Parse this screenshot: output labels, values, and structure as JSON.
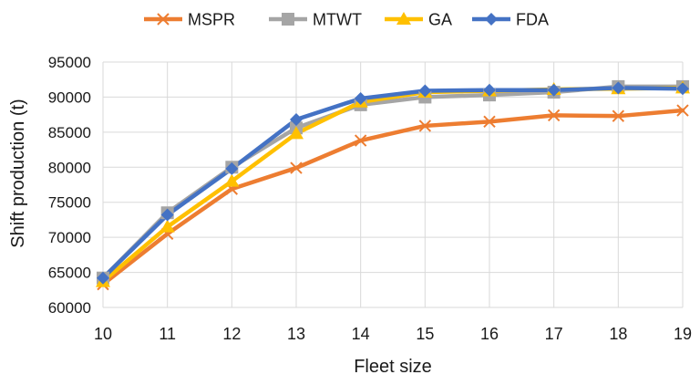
{
  "chart_data": {
    "type": "line",
    "title": "",
    "xlabel": "Fleet size",
    "ylabel": "Shift production (t)",
    "x": [
      10,
      11,
      12,
      13,
      14,
      15,
      16,
      17,
      18,
      19
    ],
    "x_tick_labels": [
      "10",
      "11",
      "12",
      "13",
      "14",
      "15",
      "16",
      "17",
      "18",
      "19"
    ],
    "ylim": [
      60000,
      95000
    ],
    "y_ticks": [
      60000,
      65000,
      70000,
      75000,
      80000,
      85000,
      90000,
      95000
    ],
    "y_tick_labels": [
      "60000",
      "65000",
      "70000",
      "75000",
      "80000",
      "85000",
      "90000",
      "95000"
    ],
    "grid": "horizontal",
    "legend_position": "top",
    "series": [
      {
        "name": "MSPR",
        "color": "#ED7D31",
        "marker": "x",
        "values": [
          63300,
          70500,
          76900,
          79900,
          83800,
          85900,
          86500,
          87400,
          87300,
          88100
        ]
      },
      {
        "name": "MTWT",
        "color": "#A5A5A5",
        "marker": "square",
        "values": [
          64200,
          73500,
          80000,
          85600,
          88900,
          90000,
          90300,
          90700,
          91500,
          91500
        ]
      },
      {
        "name": "GA",
        "color": "#FFC000",
        "marker": "triangle",
        "values": [
          63700,
          71500,
          78000,
          84800,
          89300,
          90700,
          90900,
          91100,
          91200,
          91300
        ]
      },
      {
        "name": "FDA",
        "color": "#4472C4",
        "marker": "diamond",
        "values": [
          64200,
          73200,
          79800,
          86800,
          89800,
          90900,
          91000,
          91000,
          91300,
          91200
        ]
      }
    ]
  }
}
